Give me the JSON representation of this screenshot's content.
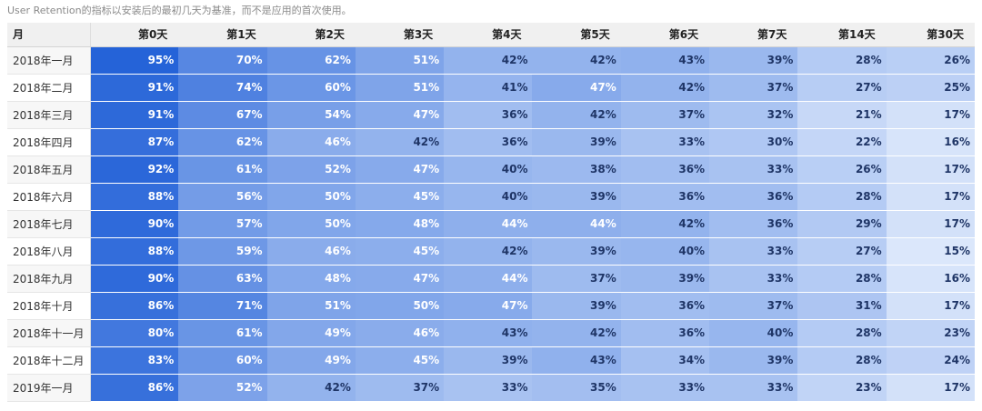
{
  "caption": "User Retention的指标以安装后的最初几天为基准，而不是应用的首次使用。",
  "colors": {
    "high": "#2563d8",
    "low": "#dbe7fb",
    "text_dark": "#1f3566",
    "text_light": "#ffffff"
  },
  "chart_data": {
    "type": "table",
    "title": "",
    "row_header": "月",
    "columns": [
      "第0天",
      "第1天",
      "第2天",
      "第3天",
      "第4天",
      "第5天",
      "第6天",
      "第7天",
      "第14天",
      "第30天"
    ],
    "rows": [
      {
        "label": "2018年一月",
        "values": [
          95,
          70,
          62,
          51,
          42,
          42,
          43,
          39,
          28,
          26
        ]
      },
      {
        "label": "2018年二月",
        "values": [
          91,
          74,
          60,
          51,
          41,
          47,
          42,
          37,
          27,
          25
        ]
      },
      {
        "label": "2018年三月",
        "values": [
          91,
          67,
          54,
          47,
          36,
          42,
          37,
          32,
          21,
          17
        ]
      },
      {
        "label": "2018年四月",
        "values": [
          87,
          62,
          46,
          42,
          36,
          39,
          33,
          30,
          22,
          16
        ]
      },
      {
        "label": "2018年五月",
        "values": [
          92,
          61,
          52,
          47,
          40,
          38,
          36,
          33,
          26,
          17
        ]
      },
      {
        "label": "2018年六月",
        "values": [
          88,
          56,
          50,
          45,
          40,
          39,
          36,
          36,
          28,
          17
        ]
      },
      {
        "label": "2018年七月",
        "values": [
          90,
          57,
          50,
          48,
          44,
          44,
          42,
          36,
          29,
          17
        ]
      },
      {
        "label": "2018年八月",
        "values": [
          88,
          59,
          46,
          45,
          42,
          39,
          40,
          33,
          27,
          15
        ]
      },
      {
        "label": "2018年九月",
        "values": [
          90,
          63,
          48,
          47,
          44,
          37,
          39,
          33,
          28,
          16
        ]
      },
      {
        "label": "2018年十月",
        "values": [
          86,
          71,
          51,
          50,
          47,
          39,
          36,
          37,
          31,
          17
        ]
      },
      {
        "label": "2018年十一月",
        "values": [
          80,
          61,
          49,
          46,
          43,
          42,
          36,
          40,
          28,
          23
        ]
      },
      {
        "label": "2018年十二月",
        "values": [
          83,
          60,
          49,
          45,
          39,
          43,
          34,
          39,
          28,
          24
        ]
      },
      {
        "label": "2019年一月",
        "values": [
          86,
          52,
          42,
          37,
          33,
          35,
          33,
          33,
          23,
          17
        ]
      }
    ],
    "value_suffix": "%"
  }
}
